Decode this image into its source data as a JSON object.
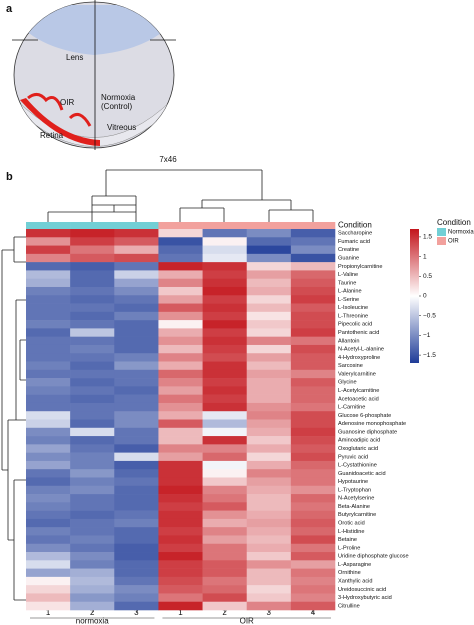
{
  "panel_labels": [
    "a",
    "b"
  ],
  "diagram": {
    "labels": [
      "Lens",
      "OIR",
      "Normoxia",
      "(Control)",
      "Vitreous",
      "Retina"
    ]
  },
  "chart_data": {
    "type": "heatmap",
    "title": "7x46",
    "condition_label": "Condition",
    "rows": [
      "Saccharopine",
      "Fumaric acid",
      "Creatine",
      "Guanine",
      "Propionylcarnitine",
      "L-Valine",
      "Taurine",
      "L-Alanine",
      "L-Serine",
      "L-Isoleucine",
      "L-Threonine",
      "Pipecolic acid",
      "Pantothenic acid",
      "Allantoin",
      "N-Acetyl-L-alanine",
      "4-Hydroxyproline",
      "Sarcosine",
      "Valerylcarnitine",
      "Glycine",
      "L-Acetylcarnitine",
      "Acetoacetic acid",
      "L-Carnitine",
      "Glucose 6-phosphate",
      "Adenosine monophosphate",
      "Guanosine diphosphate",
      "Aminoadipic acid",
      "Oxoglutaric acid",
      "Pyruvic acid",
      "L-Cystathionine",
      "Guanidoacetic acid",
      "Hypotaurine",
      "L-Tryptophan",
      "N-Acetylserine",
      "Beta-Alanine",
      "Butyrylcarnitine",
      "Orotic acid",
      "L-Histidine",
      "Betaine",
      "L-Proline",
      "Uridine diphosphate glucose",
      "L-Asparagine",
      "Ornithine",
      "Xanthylic acid",
      "Ureidosuccinic acid",
      "3-Hydroxybutyric acid",
      "Citrulline"
    ],
    "column_groups": [
      {
        "label": "normoxia",
        "columns": [
          "1",
          "2",
          "3"
        ]
      },
      {
        "label": "OIR",
        "columns": [
          "1",
          "2",
          "3",
          "4"
        ]
      }
    ],
    "legend": {
      "title": "Condition",
      "items": [
        {
          "name": "Normoxia",
          "color": "#72cfd5"
        },
        {
          "name": "OIR",
          "color": "#f2a19d"
        }
      ]
    },
    "colorscale": {
      "low": "#1f3c98",
      "mid": "#ffffff",
      "high": "#c3151c"
    },
    "clim": [
      -1.7,
      1.7
    ],
    "colorbar_ticks": [
      1.5,
      1,
      0.5,
      0,
      {
        "value": -0.5,
        "label": "−0.5"
      },
      {
        "value": -1,
        "label": "−1"
      },
      {
        "value": -1.5,
        "label": "−1.5"
      }
    ],
    "values": [
      [
        1.5,
        1.6,
        1.5,
        0.3,
        -1.2,
        -1.0,
        -1.4
      ],
      [
        0.8,
        1.4,
        1.2,
        -1.5,
        0.1,
        -1.3,
        -1.2
      ],
      [
        1.4,
        1.0,
        0.6,
        -1.3,
        -0.3,
        -1.6,
        -1.0
      ],
      [
        0.9,
        1.2,
        1.3,
        -1.2,
        -0.2,
        -1.0,
        -1.5
      ],
      [
        -1.3,
        -1.4,
        -1.2,
        1.6,
        1.5,
        0.3,
        0.5
      ],
      [
        -0.6,
        -1.3,
        -0.4,
        0.6,
        1.4,
        0.7,
        1.1
      ],
      [
        -0.7,
        -1.3,
        -0.8,
        0.9,
        1.5,
        0.5,
        1.2
      ],
      [
        -1.1,
        -1.2,
        -1.0,
        0.4,
        1.6,
        0.6,
        1.3
      ],
      [
        -1.2,
        -1.3,
        -1.2,
        0.7,
        1.4,
        0.3,
        1.4
      ],
      [
        -1.2,
        -1.2,
        -1.3,
        1.2,
        1.5,
        0.5,
        1.2
      ],
      [
        -1.2,
        -1.3,
        -1.1,
        0.8,
        1.4,
        0.2,
        1.3
      ],
      [
        -1.1,
        -1.2,
        -1.3,
        0.1,
        1.6,
        0.4,
        1.3
      ],
      [
        -1.3,
        -0.5,
        -1.3,
        0.6,
        1.4,
        0.3,
        1.4
      ],
      [
        -1.2,
        -1.2,
        -1.3,
        0.8,
        1.5,
        0.9,
        1.0
      ],
      [
        -1.2,
        -1.1,
        -1.3,
        0.5,
        1.4,
        0.3,
        1.3
      ],
      [
        -1.2,
        -1.2,
        -1.1,
        0.9,
        1.3,
        0.7,
        1.2
      ],
      [
        -1.1,
        -1.3,
        -0.9,
        0.6,
        1.5,
        0.5,
        1.2
      ],
      [
        -1.2,
        -1.2,
        -1.2,
        1.1,
        1.5,
        0.7,
        0.9
      ],
      [
        -1.0,
        -1.3,
        -1.2,
        0.9,
        1.4,
        0.6,
        1.2
      ],
      [
        -1.1,
        -1.2,
        -1.3,
        0.7,
        1.5,
        0.6,
        1.1
      ],
      [
        -1.2,
        -1.3,
        -1.2,
        1.0,
        1.4,
        0.6,
        1.1
      ],
      [
        -1.2,
        -1.2,
        -1.2,
        0.8,
        1.5,
        0.8,
        1.0
      ],
      [
        -0.3,
        -1.2,
        -1.0,
        0.6,
        -0.2,
        0.9,
        1.3
      ],
      [
        -0.4,
        -1.3,
        -1.0,
        1.2,
        -0.6,
        0.7,
        1.3
      ],
      [
        -1.0,
        -0.3,
        -1.2,
        0.5,
        -0.1,
        0.6,
        1.4
      ],
      [
        -1.1,
        -1.3,
        -1.2,
        0.5,
        1.5,
        0.4,
        1.3
      ],
      [
        -0.8,
        -1.2,
        -1.4,
        0.9,
        0.9,
        0.6,
        1.2
      ],
      [
        -1.0,
        -1.1,
        -0.3,
        0.7,
        1.1,
        0.3,
        1.3
      ],
      [
        -0.8,
        -1.1,
        -1.4,
        1.5,
        -0.1,
        0.6,
        1.1
      ],
      [
        -1.2,
        -0.9,
        -1.3,
        1.5,
        0.1,
        0.9,
        1.0
      ],
      [
        -1.3,
        -1.1,
        -1.2,
        1.5,
        0.4,
        0.7,
        1.0
      ],
      [
        -1.1,
        -1.0,
        -1.3,
        1.6,
        0.9,
        0.6,
        0.8
      ],
      [
        -1.0,
        -1.2,
        -1.3,
        1.5,
        1.0,
        0.5,
        1.1
      ],
      [
        -1.1,
        -1.2,
        -1.3,
        1.4,
        1.2,
        0.5,
        1.0
      ],
      [
        -1.2,
        -1.3,
        -1.2,
        1.5,
        0.8,
        0.6,
        1.1
      ],
      [
        -1.3,
        -1.2,
        -1.1,
        1.5,
        0.6,
        0.7,
        1.2
      ],
      [
        -1.1,
        -1.2,
        -1.3,
        1.4,
        0.9,
        0.6,
        1.1
      ],
      [
        -1.2,
        -1.1,
        -1.3,
        1.5,
        0.7,
        0.5,
        1.3
      ],
      [
        -1.0,
        -1.2,
        -1.4,
        1.4,
        1.0,
        0.6,
        1.0
      ],
      [
        -0.6,
        -1.0,
        -1.4,
        1.6,
        1.0,
        0.4,
        1.2
      ],
      [
        -0.3,
        -1.1,
        -1.3,
        1.4,
        1.2,
        0.8,
        0.7
      ],
      [
        -0.8,
        -0.7,
        -1.3,
        1.4,
        1.2,
        0.5,
        1.0
      ],
      [
        0.1,
        -0.6,
        -1.2,
        1.3,
        1.0,
        0.5,
        0.9
      ],
      [
        0.3,
        -0.7,
        -1.0,
        1.2,
        1.1,
        0.3,
        1.0
      ],
      [
        0.5,
        -0.9,
        -1.1,
        1.0,
        1.3,
        0.4,
        0.9
      ],
      [
        0.2,
        -0.7,
        -1.3,
        1.6,
        0.4,
        0.9,
        1.2
      ]
    ]
  }
}
